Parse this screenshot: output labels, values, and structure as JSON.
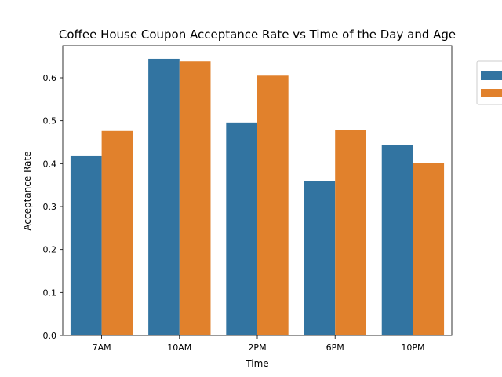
{
  "chart_data": {
    "type": "bar",
    "title": "Coffee House Coupon Acceptance Rate vs Time of the Day and Age",
    "xlabel": "Time",
    "ylabel": "Acceptance Rate",
    "categories": [
      "7AM",
      "10AM",
      "2PM",
      "6PM",
      "10PM"
    ],
    "series": [
      {
        "values": [
          0.419,
          0.644,
          0.496,
          0.359,
          0.443
        ],
        "color": "#3274a1"
      },
      {
        "values": [
          0.476,
          0.638,
          0.605,
          0.478,
          0.402
        ],
        "color": "#e1812c"
      }
    ],
    "ylim": [
      0,
      0.675
    ],
    "yticks": [
      0.0,
      0.1,
      0.2,
      0.3,
      0.4,
      0.5,
      0.6
    ],
    "ytick_labels": [
      "0.0",
      "0.1",
      "0.2",
      "0.3",
      "0.4",
      "0.5",
      "0.6"
    ],
    "grid": false,
    "legend": {
      "placement": "outside-top-right"
    }
  }
}
